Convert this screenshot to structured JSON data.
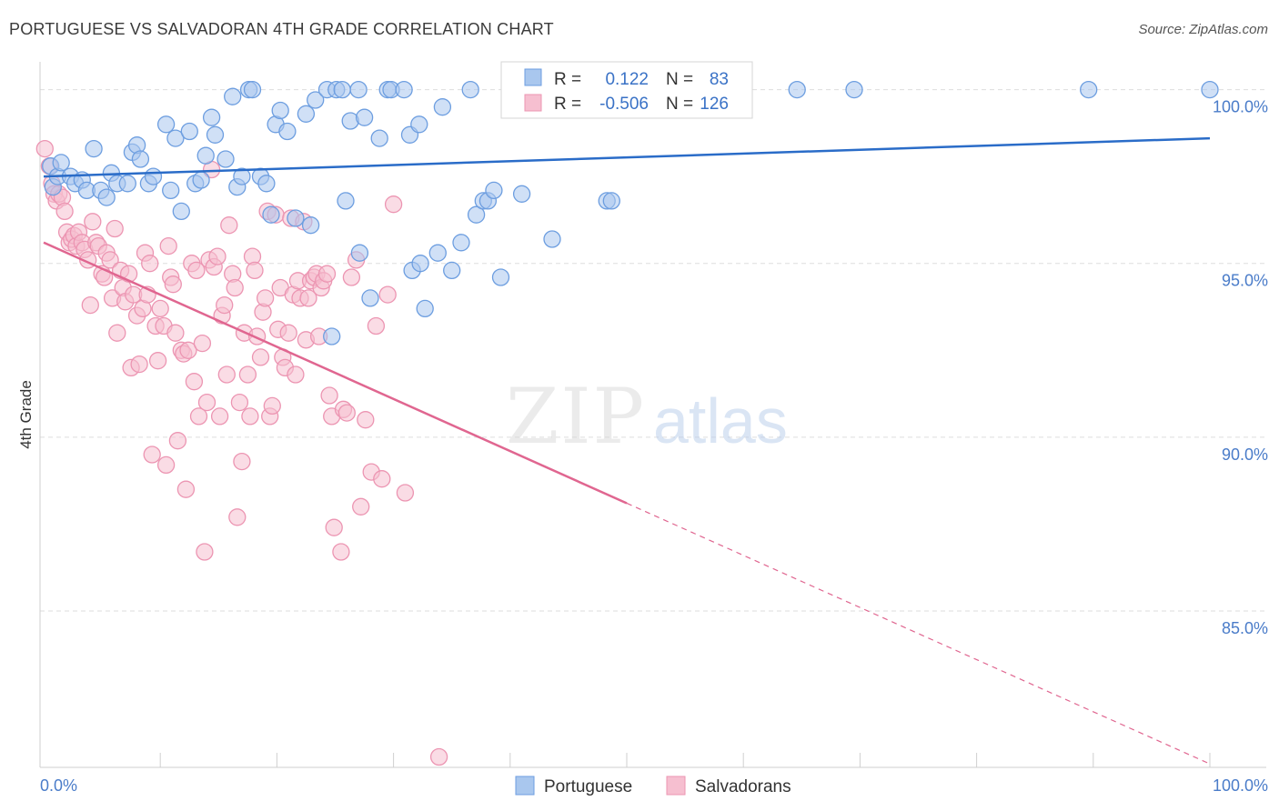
{
  "header": {
    "title": "PORTUGUESE VS SALVADORAN 4TH GRADE CORRELATION CHART",
    "source": "Source: ZipAtlas.com"
  },
  "watermark": {
    "zip": "ZIP",
    "atlas": "atlas"
  },
  "colors": {
    "blue_fill": "#a9c7ee",
    "blue_stroke": "#6d9ee0",
    "blue_line": "#2a6cc8",
    "pink_fill": "#f6bfd0",
    "pink_stroke": "#ec95b2",
    "pink_line": "#e06690",
    "grid": "#dddddd",
    "tick_text": "#4a7cc9"
  },
  "legend_box": {
    "row1": {
      "r_label": "R =",
      "r_value": "0.122",
      "n_label": "N =",
      "n_value": "83"
    },
    "row2": {
      "r_label": "R =",
      "r_value": "-0.506",
      "n_label": "N =",
      "n_value": "126"
    }
  },
  "bottom_legend": {
    "item1": "Portuguese",
    "item2": "Salvadorans"
  },
  "chart_data": {
    "type": "scatter",
    "title": "PORTUGUESE VS SALVADORAN 4TH GRADE CORRELATION CHART",
    "xlabel": "",
    "ylabel": "4th Grade",
    "xlim": [
      0,
      100
    ],
    "ylim": [
      80.5,
      100.8
    ],
    "x_tick_labels": [
      "0.0%",
      "100.0%"
    ],
    "y_ticks": [
      85,
      90,
      95,
      100
    ],
    "y_tick_labels": [
      "85.0%",
      "90.0%",
      "95.0%",
      "100.0%"
    ],
    "grid": true,
    "legend_position": "top-center",
    "series": [
      {
        "name": "Portuguese",
        "color": "#a9c7ee",
        "R": 0.122,
        "N": 83,
        "trend": {
          "x": [
            0,
            100
          ],
          "y": [
            97.5,
            98.6
          ],
          "dashed_from": null
        },
        "points": [
          [
            0.6,
            97.8
          ],
          [
            0.8,
            97.2
          ],
          [
            1.2,
            97.5
          ],
          [
            1.5,
            97.9
          ],
          [
            2.3,
            97.5
          ],
          [
            2.7,
            97.3
          ],
          [
            3.3,
            97.4
          ],
          [
            3.7,
            97.1
          ],
          [
            4.3,
            98.3
          ],
          [
            4.9,
            97.1
          ],
          [
            5.4,
            96.9
          ],
          [
            5.8,
            97.6
          ],
          [
            6.3,
            97.3
          ],
          [
            7.2,
            97.3
          ],
          [
            7.6,
            98.2
          ],
          [
            8.0,
            98.4
          ],
          [
            8.3,
            98.0
          ],
          [
            9.0,
            97.3
          ],
          [
            9.4,
            97.5
          ],
          [
            10.5,
            99.0
          ],
          [
            10.9,
            97.1
          ],
          [
            11.3,
            98.6
          ],
          [
            11.8,
            96.5
          ],
          [
            12.5,
            98.8
          ],
          [
            13.0,
            97.3
          ],
          [
            13.5,
            97.4
          ],
          [
            13.9,
            98.1
          ],
          [
            14.4,
            99.2
          ],
          [
            14.7,
            98.7
          ],
          [
            15.6,
            98.0
          ],
          [
            16.2,
            99.8
          ],
          [
            16.6,
            97.2
          ],
          [
            17.0,
            97.5
          ],
          [
            17.6,
            100.0
          ],
          [
            17.9,
            100.0
          ],
          [
            18.6,
            97.5
          ],
          [
            19.1,
            97.3
          ],
          [
            19.5,
            96.4
          ],
          [
            19.9,
            99.0
          ],
          [
            20.3,
            99.4
          ],
          [
            20.9,
            98.8
          ],
          [
            21.6,
            96.3
          ],
          [
            22.5,
            99.3
          ],
          [
            22.9,
            96.1
          ],
          [
            23.3,
            99.7
          ],
          [
            24.3,
            100.0
          ],
          [
            24.7,
            92.9
          ],
          [
            25.1,
            100.0
          ],
          [
            25.6,
            100.0
          ],
          [
            25.9,
            96.8
          ],
          [
            26.3,
            99.1
          ],
          [
            27.0,
            100.0
          ],
          [
            27.1,
            95.3
          ],
          [
            27.5,
            99.2
          ],
          [
            28.0,
            94.0
          ],
          [
            28.8,
            98.6
          ],
          [
            29.5,
            100.0
          ],
          [
            29.8,
            100.0
          ],
          [
            30.9,
            100.0
          ],
          [
            31.4,
            98.7
          ],
          [
            31.6,
            94.8
          ],
          [
            32.2,
            99.0
          ],
          [
            32.3,
            95.0
          ],
          [
            32.7,
            93.7
          ],
          [
            33.8,
            95.3
          ],
          [
            34.2,
            99.5
          ],
          [
            35.0,
            94.8
          ],
          [
            35.8,
            95.6
          ],
          [
            36.6,
            100.0
          ],
          [
            37.1,
            96.4
          ],
          [
            37.7,
            96.8
          ],
          [
            38.1,
            96.8
          ],
          [
            38.6,
            97.1
          ],
          [
            39.2,
            94.6
          ],
          [
            41.0,
            97.0
          ],
          [
            43.6,
            95.7
          ],
          [
            45.3,
            100.0
          ],
          [
            48.3,
            96.8
          ],
          [
            48.7,
            96.8
          ],
          [
            64.6,
            100.0
          ],
          [
            69.5,
            100.0
          ],
          [
            89.6,
            100.0
          ],
          [
            100.0,
            100.0
          ]
        ]
      },
      {
        "name": "Salvadorans",
        "color": "#f6bfd0",
        "R": -0.506,
        "N": 126,
        "trend": {
          "x": [
            0,
            100
          ],
          "y": [
            95.6,
            80.6
          ],
          "dashed_from": 50
        },
        "points": [
          [
            0.1,
            98.3
          ],
          [
            0.5,
            97.8
          ],
          [
            0.7,
            97.3
          ],
          [
            0.9,
            97.0
          ],
          [
            1.1,
            96.8
          ],
          [
            1.3,
            97.0
          ],
          [
            1.6,
            96.9
          ],
          [
            1.8,
            96.5
          ],
          [
            2.0,
            95.9
          ],
          [
            2.2,
            95.6
          ],
          [
            2.4,
            95.7
          ],
          [
            2.6,
            95.8
          ],
          [
            2.8,
            95.5
          ],
          [
            3.0,
            95.9
          ],
          [
            3.3,
            95.6
          ],
          [
            3.5,
            95.4
          ],
          [
            3.8,
            95.1
          ],
          [
            4.0,
            93.8
          ],
          [
            4.2,
            96.2
          ],
          [
            4.5,
            95.6
          ],
          [
            4.7,
            95.5
          ],
          [
            5.0,
            94.7
          ],
          [
            5.2,
            94.6
          ],
          [
            5.4,
            95.3
          ],
          [
            5.7,
            95.1
          ],
          [
            5.9,
            94.0
          ],
          [
            6.1,
            96.0
          ],
          [
            6.3,
            93.0
          ],
          [
            6.6,
            94.8
          ],
          [
            6.8,
            94.3
          ],
          [
            7.0,
            93.9
          ],
          [
            7.3,
            94.7
          ],
          [
            7.5,
            92.0
          ],
          [
            7.7,
            94.1
          ],
          [
            8.0,
            93.5
          ],
          [
            8.2,
            92.1
          ],
          [
            8.5,
            93.7
          ],
          [
            8.7,
            95.3
          ],
          [
            8.9,
            94.1
          ],
          [
            9.1,
            95.0
          ],
          [
            9.3,
            89.5
          ],
          [
            9.6,
            93.2
          ],
          [
            9.8,
            92.2
          ],
          [
            10.0,
            93.7
          ],
          [
            10.3,
            93.2
          ],
          [
            10.5,
            89.2
          ],
          [
            10.7,
            95.5
          ],
          [
            10.9,
            94.6
          ],
          [
            11.1,
            94.4
          ],
          [
            11.3,
            93.0
          ],
          [
            11.5,
            89.9
          ],
          [
            11.8,
            92.5
          ],
          [
            12.0,
            92.4
          ],
          [
            12.2,
            88.5
          ],
          [
            12.4,
            92.5
          ],
          [
            12.7,
            95.0
          ],
          [
            12.9,
            91.6
          ],
          [
            13.1,
            94.8
          ],
          [
            13.3,
            90.6
          ],
          [
            13.6,
            92.7
          ],
          [
            13.8,
            86.7
          ],
          [
            14.0,
            91.0
          ],
          [
            14.2,
            95.1
          ],
          [
            14.4,
            97.7
          ],
          [
            14.6,
            94.9
          ],
          [
            14.9,
            95.2
          ],
          [
            15.1,
            90.6
          ],
          [
            15.3,
            93.5
          ],
          [
            15.5,
            93.8
          ],
          [
            15.7,
            91.8
          ],
          [
            15.9,
            96.1
          ],
          [
            16.2,
            94.7
          ],
          [
            16.4,
            94.3
          ],
          [
            16.6,
            87.7
          ],
          [
            16.8,
            91.0
          ],
          [
            17.0,
            89.3
          ],
          [
            17.2,
            93.0
          ],
          [
            17.5,
            91.8
          ],
          [
            17.7,
            90.6
          ],
          [
            17.9,
            95.2
          ],
          [
            18.1,
            94.8
          ],
          [
            18.3,
            92.9
          ],
          [
            18.6,
            92.3
          ],
          [
            18.8,
            93.6
          ],
          [
            19.0,
            94.0
          ],
          [
            19.2,
            96.5
          ],
          [
            19.4,
            90.6
          ],
          [
            19.6,
            90.9
          ],
          [
            19.9,
            96.4
          ],
          [
            20.1,
            93.1
          ],
          [
            20.3,
            94.3
          ],
          [
            20.5,
            92.3
          ],
          [
            20.7,
            92.0
          ],
          [
            21.0,
            93.0
          ],
          [
            21.2,
            96.3
          ],
          [
            21.4,
            94.1
          ],
          [
            21.6,
            91.8
          ],
          [
            21.8,
            94.5
          ],
          [
            22.0,
            94.0
          ],
          [
            22.3,
            96.2
          ],
          [
            22.5,
            92.8
          ],
          [
            22.7,
            94.0
          ],
          [
            22.9,
            94.5
          ],
          [
            23.2,
            94.6
          ],
          [
            23.4,
            94.7
          ],
          [
            23.6,
            92.9
          ],
          [
            23.8,
            94.3
          ],
          [
            24.0,
            94.5
          ],
          [
            24.3,
            94.7
          ],
          [
            24.5,
            91.2
          ],
          [
            24.7,
            90.6
          ],
          [
            24.9,
            87.4
          ],
          [
            25.5,
            86.7
          ],
          [
            25.7,
            90.8
          ],
          [
            26.0,
            90.7
          ],
          [
            26.4,
            94.6
          ],
          [
            26.8,
            95.1
          ],
          [
            27.2,
            88.0
          ],
          [
            27.6,
            90.5
          ],
          [
            28.1,
            89.0
          ],
          [
            28.5,
            93.2
          ],
          [
            29.0,
            88.8
          ],
          [
            29.5,
            94.1
          ],
          [
            30.0,
            96.7
          ],
          [
            31.0,
            88.4
          ],
          [
            33.9,
            80.8
          ]
        ]
      }
    ]
  }
}
